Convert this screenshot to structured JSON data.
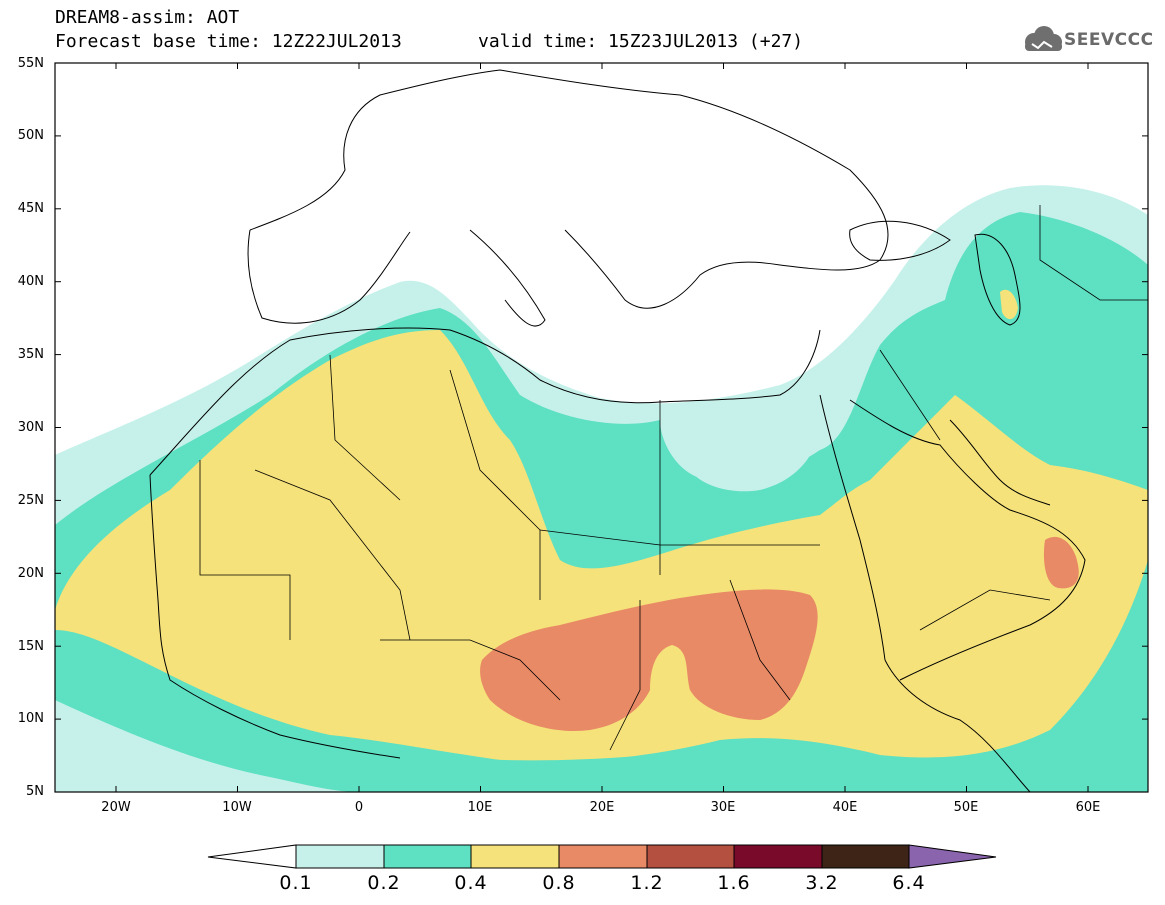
{
  "header": {
    "title": "DREAM8-assim: AOT",
    "base_time": "Forecast base time: 12Z22JUL2013",
    "valid_time": "valid time: 15Z23JUL2013 (+27)"
  },
  "logo": {
    "text": "SEEVCCC",
    "icon": "cloud-icon"
  },
  "map": {
    "variable": "AOT",
    "lat_labels": [
      "55N",
      "50N",
      "45N",
      "40N",
      "35N",
      "30N",
      "25N",
      "20N",
      "15N",
      "10N",
      "5N"
    ],
    "lon_labels": [
      "20W",
      "10W",
      "0",
      "10E",
      "20E",
      "30E",
      "40E",
      "50E",
      "60E"
    ]
  },
  "colorbar": {
    "labels": [
      "0.1",
      "0.2",
      "0.4",
      "0.8",
      "1.2",
      "1.6",
      "3.2",
      "6.4"
    ],
    "colors": [
      "#ffffff",
      "#c6f1ea",
      "#5ee0c2",
      "#f5e27a",
      "#e98a66",
      "#b3503f",
      "#7a0a2a",
      "#3d2417",
      "#8a64ad"
    ]
  }
}
